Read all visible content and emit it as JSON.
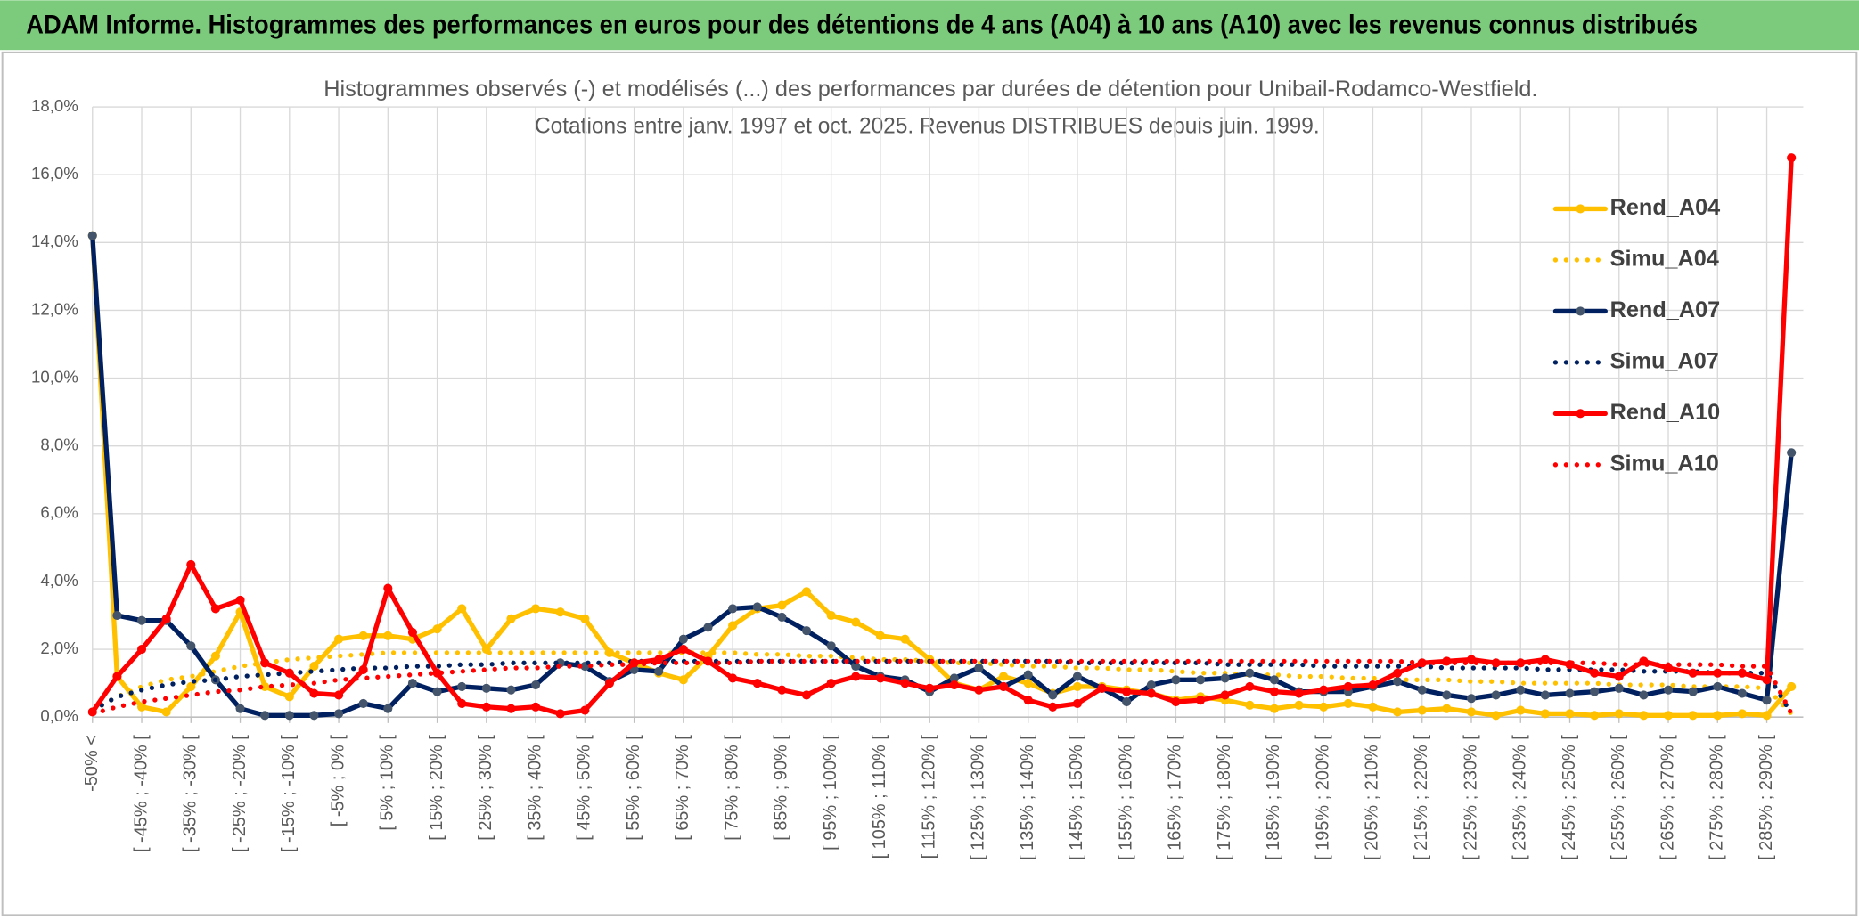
{
  "header": "ADAM Informe. Histogrammes des performances en euros pour des détentions de 4 ans (A04) à 10 ans (A10) avec les revenus connus distribués",
  "chart_data": {
    "type": "line",
    "title": "Histogrammes observés (-) et modélisés (...) des performances par durées de détention pour Unibail-Rodamco-Westfield.",
    "subtitle": "Cotations entre janv. 1997 et oct. 2025. Revenus DISTRIBUES depuis juin. 1999.",
    "categories": [
      "-50% <",
      null,
      "[ -45% ; -40% [",
      null,
      "[ -35% ; -30% [",
      null,
      "[ -25% ; -20% [",
      null,
      "[ -15% ; -10% [",
      null,
      "[ -5% ; 0% [",
      null,
      "[ 5% ; 10% [",
      null,
      "[ 15% ; 20% [",
      null,
      "[ 25% ; 30% [",
      null,
      "[ 35% ; 40% [",
      null,
      "[ 45% ; 50% [",
      null,
      "[ 55% ; 60% [",
      null,
      "[ 65% ; 70% [",
      null,
      "[ 75% ; 80% [",
      null,
      "[ 85% ; 90% [",
      null,
      "[ 95% ; 100% [",
      null,
      "[ 105% ; 110% [",
      null,
      "[ 115% ; 120% [",
      null,
      "[ 125% ; 130% [",
      null,
      "[ 135% ; 140% [",
      null,
      "[ 145% ; 150% [",
      null,
      "[ 155% ; 160% [",
      null,
      "[ 165% ; 170% [",
      null,
      "[ 175% ; 180% [",
      null,
      "[ 185% ; 190% [",
      null,
      "[ 195% ; 200% [",
      null,
      "[ 205% ; 210% [",
      null,
      "[ 215% ; 220% [",
      null,
      "[ 225% ; 230% [",
      null,
      "[ 235% ; 240% [",
      null,
      "[ 245% ; 250% [",
      null,
      "[ 255% ; 260% [",
      null,
      "[ 265% ; 270% [",
      null,
      "[ 275% ; 280% [",
      null,
      "[ 285% ; 290% [",
      null
    ],
    "series": [
      {
        "name": "Rend_A04",
        "color": "#ffc000",
        "style": "solid",
        "marker_color": "#ffc000",
        "values": [
          14.2,
          1.2,
          0.3,
          0.15,
          0.9,
          1.8,
          3.1,
          0.9,
          0.6,
          1.5,
          2.3,
          2.4,
          2.4,
          2.3,
          2.6,
          3.2,
          2.0,
          2.9,
          3.2,
          3.1,
          2.9,
          1.9,
          1.6,
          1.3,
          1.1,
          1.8,
          2.7,
          3.2,
          3.3,
          3.7,
          3.0,
          2.8,
          2.4,
          2.3,
          1.7,
          1.0,
          0.8,
          1.2,
          1.0,
          0.7,
          0.9,
          0.9,
          0.8,
          0.7,
          0.5,
          0.6,
          0.5,
          0.35,
          0.25,
          0.35,
          0.3,
          0.4,
          0.3,
          0.15,
          0.2,
          0.25,
          0.15,
          0.05,
          0.2,
          0.1,
          0.1,
          0.05,
          0.1,
          0.05,
          0.05,
          0.05,
          0.05,
          0.1,
          0.05,
          0.9
        ]
      },
      {
        "name": "Simu_A04",
        "color": "#ffc000",
        "style": "dotted",
        "values": [
          0.2,
          0.6,
          0.9,
          1.1,
          1.2,
          1.35,
          1.5,
          1.6,
          1.7,
          1.75,
          1.8,
          1.85,
          1.9,
          1.9,
          1.9,
          1.9,
          1.9,
          1.9,
          1.9,
          1.9,
          1.9,
          1.9,
          1.9,
          1.9,
          1.9,
          1.9,
          1.9,
          1.85,
          1.85,
          1.8,
          1.8,
          1.75,
          1.7,
          1.7,
          1.65,
          1.6,
          1.6,
          1.55,
          1.5,
          1.5,
          1.45,
          1.45,
          1.4,
          1.4,
          1.35,
          1.3,
          1.3,
          1.25,
          1.25,
          1.2,
          1.2,
          1.15,
          1.15,
          1.1,
          1.1,
          1.1,
          1.05,
          1.05,
          1.0,
          1.0,
          1.0,
          1.0,
          0.95,
          0.95,
          0.95,
          0.9,
          0.9,
          0.9,
          0.85,
          0.1
        ]
      },
      {
        "name": "Rend_A07",
        "color": "#002060",
        "style": "solid",
        "marker_color": "#44546a",
        "values": [
          14.2,
          3.0,
          2.85,
          2.85,
          2.1,
          1.1,
          0.25,
          0.05,
          0.05,
          0.05,
          0.1,
          0.4,
          0.25,
          1.0,
          0.75,
          0.9,
          0.85,
          0.8,
          0.95,
          1.6,
          1.5,
          1.05,
          1.4,
          1.35,
          2.3,
          2.65,
          3.2,
          3.25,
          2.95,
          2.55,
          2.1,
          1.5,
          1.2,
          1.1,
          0.75,
          1.15,
          1.45,
          0.9,
          1.25,
          0.65,
          1.2,
          0.85,
          0.45,
          0.95,
          1.1,
          1.1,
          1.15,
          1.3,
          1.1,
          0.75,
          0.75,
          0.75,
          0.9,
          1.05,
          0.8,
          0.65,
          0.55,
          0.65,
          0.8,
          0.65,
          0.7,
          0.75,
          0.85,
          0.65,
          0.8,
          0.75,
          0.9,
          0.7,
          0.5,
          7.8
        ]
      },
      {
        "name": "Simu_A07",
        "color": "#002060",
        "style": "dotted",
        "values": [
          0.2,
          0.6,
          0.8,
          0.95,
          1.05,
          1.1,
          1.2,
          1.25,
          1.3,
          1.35,
          1.4,
          1.45,
          1.45,
          1.5,
          1.5,
          1.55,
          1.55,
          1.6,
          1.6,
          1.6,
          1.6,
          1.6,
          1.65,
          1.65,
          1.65,
          1.65,
          1.65,
          1.65,
          1.65,
          1.65,
          1.65,
          1.65,
          1.65,
          1.65,
          1.65,
          1.65,
          1.65,
          1.65,
          1.65,
          1.65,
          1.6,
          1.6,
          1.6,
          1.6,
          1.6,
          1.6,
          1.55,
          1.55,
          1.55,
          1.55,
          1.5,
          1.5,
          1.5,
          1.5,
          1.5,
          1.45,
          1.45,
          1.45,
          1.45,
          1.4,
          1.4,
          1.4,
          1.4,
          1.35,
          1.35,
          1.35,
          1.3,
          1.3,
          1.3,
          0.1
        ]
      },
      {
        "name": "Rend_A10",
        "color": "#ff0000",
        "style": "solid",
        "marker_color": "#ff0000",
        "values": [
          0.15,
          1.2,
          2.0,
          2.9,
          4.5,
          3.2,
          3.45,
          1.6,
          1.3,
          0.7,
          0.65,
          1.4,
          3.8,
          2.5,
          1.3,
          0.4,
          0.3,
          0.25,
          0.3,
          0.1,
          0.2,
          1.0,
          1.6,
          1.7,
          2.0,
          1.65,
          1.15,
          1.0,
          0.8,
          0.65,
          1.0,
          1.2,
          1.15,
          1.0,
          0.85,
          0.95,
          0.8,
          0.9,
          0.5,
          0.3,
          0.4,
          0.85,
          0.75,
          0.7,
          0.45,
          0.5,
          0.65,
          0.9,
          0.75,
          0.7,
          0.8,
          0.9,
          0.95,
          1.3,
          1.6,
          1.65,
          1.7,
          1.6,
          1.6,
          1.7,
          1.55,
          1.3,
          1.2,
          1.65,
          1.45,
          1.3,
          1.3,
          1.3,
          1.1,
          16.5
        ]
      },
      {
        "name": "Simu_A10",
        "color": "#ff0000",
        "style": "dotted",
        "values": [
          0.1,
          0.3,
          0.45,
          0.55,
          0.65,
          0.75,
          0.8,
          0.9,
          0.95,
          1.0,
          1.1,
          1.15,
          1.2,
          1.25,
          1.3,
          1.35,
          1.4,
          1.45,
          1.45,
          1.5,
          1.5,
          1.55,
          1.55,
          1.6,
          1.6,
          1.6,
          1.6,
          1.65,
          1.65,
          1.65,
          1.65,
          1.65,
          1.65,
          1.65,
          1.65,
          1.65,
          1.65,
          1.65,
          1.65,
          1.65,
          1.65,
          1.65,
          1.65,
          1.65,
          1.65,
          1.65,
          1.65,
          1.65,
          1.65,
          1.65,
          1.65,
          1.65,
          1.65,
          1.65,
          1.6,
          1.6,
          1.6,
          1.6,
          1.6,
          1.6,
          1.6,
          1.6,
          1.55,
          1.55,
          1.55,
          1.55,
          1.55,
          1.5,
          1.5,
          0.1
        ]
      }
    ],
    "ylim": [
      0,
      18
    ],
    "yticks": [
      {
        "value": 0,
        "label": "0,0%"
      },
      {
        "value": 2,
        "label": "2,0%"
      },
      {
        "value": 4,
        "label": "4,0%"
      },
      {
        "value": 6,
        "label": "6,0%"
      },
      {
        "value": 8,
        "label": "8,0%"
      },
      {
        "value": 10,
        "label": "10,0%"
      },
      {
        "value": 12,
        "label": "12,0%"
      },
      {
        "value": 14,
        "label": "14,0%"
      },
      {
        "value": 16,
        "label": "16,0%"
      },
      {
        "value": 18,
        "label": "18,0%"
      }
    ],
    "grid": true,
    "legend": "right"
  }
}
